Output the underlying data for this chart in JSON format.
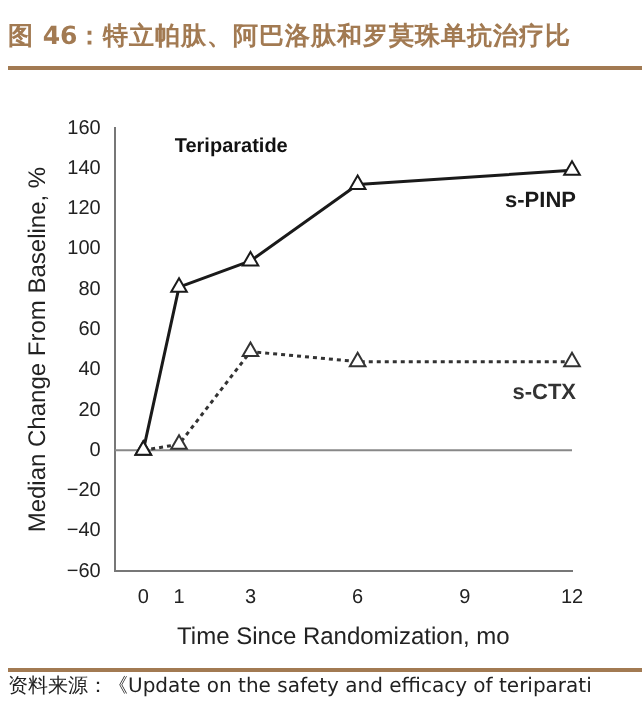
{
  "chart_data": {
    "type": "line",
    "title": "图 46：特立帕肽、阿巴洛肽和罗莫珠单抗治疗比",
    "xlabel": "Time Since Randomization, mo",
    "ylabel": "Median Change From Baseline, %",
    "x": [
      0,
      1,
      3,
      6,
      12
    ],
    "series": [
      {
        "name": "s-PINP",
        "color": "#1a1a1a",
        "values": [
          0,
          81,
          94,
          132,
          139
        ],
        "line_style": "solid"
      },
      {
        "name": "s-CTX",
        "color": "#333333",
        "values": [
          0,
          3,
          49,
          44,
          44
        ],
        "line_style": "dotted"
      }
    ],
    "xlim": [
      -0.8,
      12
    ],
    "xticks": [
      0,
      1,
      3,
      6,
      9,
      12
    ],
    "ylim": [
      -60,
      160
    ],
    "yticks": [
      -60,
      -40,
      -20,
      0,
      20,
      40,
      60,
      80,
      100,
      120,
      140,
      160
    ],
    "ref_lines": [
      {
        "axis": "y",
        "value": 0,
        "color": "#888888"
      }
    ],
    "marker": "triangle",
    "grid": false,
    "legend": false,
    "annotations": [
      "Teriparatide",
      "资料来源：《Update on the safety and efficacy of teriparati"
    ]
  }
}
